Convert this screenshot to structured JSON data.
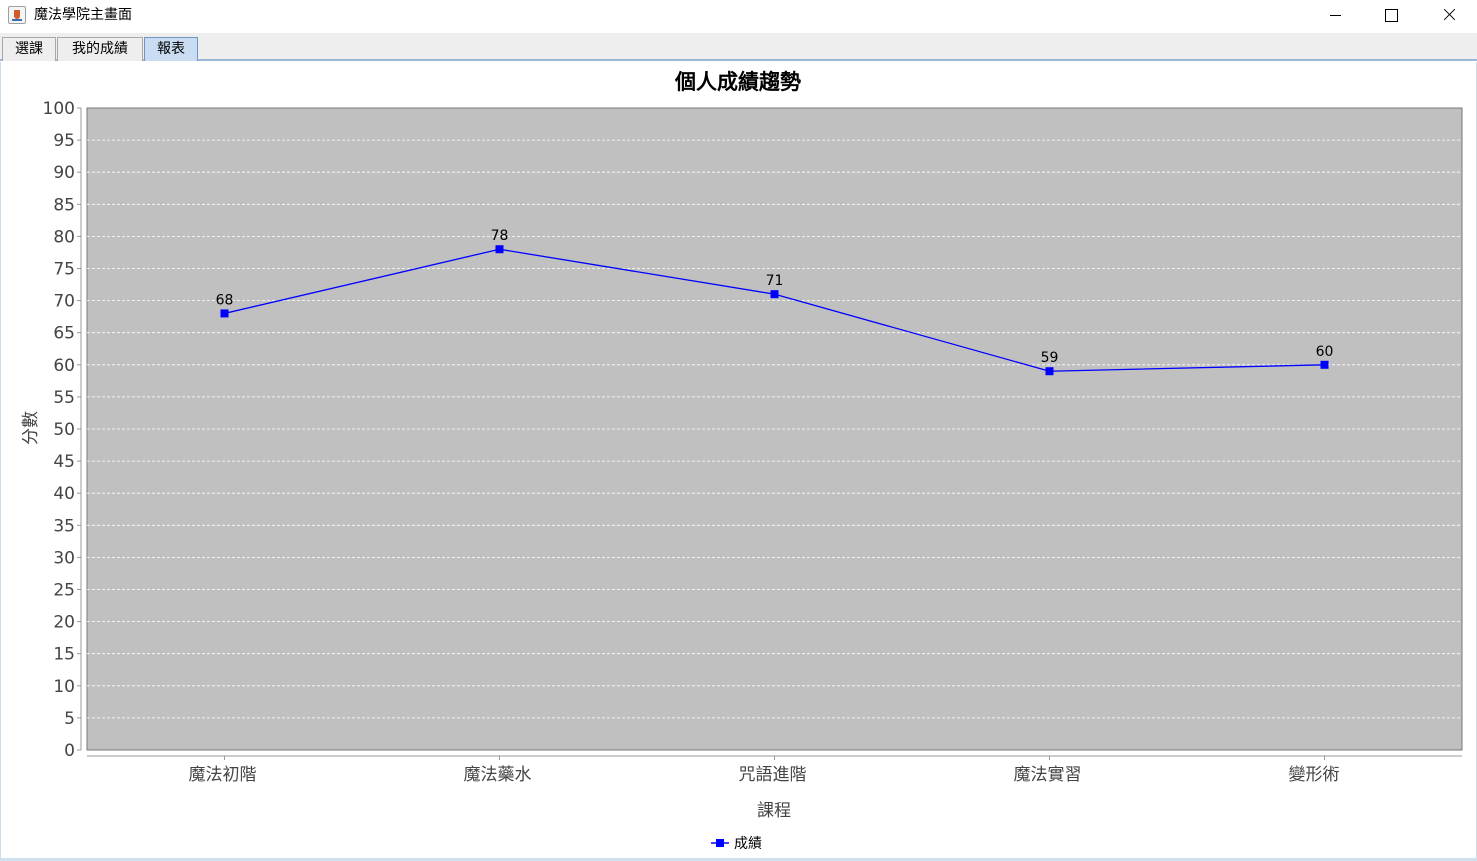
{
  "window": {
    "title": "魔法學院主畫面"
  },
  "tabs": [
    {
      "label": "選課"
    },
    {
      "label": "我的成績"
    },
    {
      "label": "報表",
      "selected": true
    }
  ],
  "colors": {
    "plot_background": "#c0c0c0",
    "series_line": "#0000ff",
    "gridline": "#ffffff"
  },
  "chart_data": {
    "type": "line",
    "title": "個人成績趨勢",
    "xlabel": "課程",
    "ylabel": "分數",
    "categories": [
      "魔法初階",
      "魔法藥水",
      "咒語進階",
      "魔法實習",
      "變形術"
    ],
    "series": [
      {
        "name": "成績",
        "values": [
          68,
          78,
          71,
          59,
          60
        ]
      }
    ],
    "ylim": [
      0,
      100
    ],
    "ytick_step": 5,
    "grid": true,
    "data_labels": true,
    "legend": "bottom-center"
  }
}
